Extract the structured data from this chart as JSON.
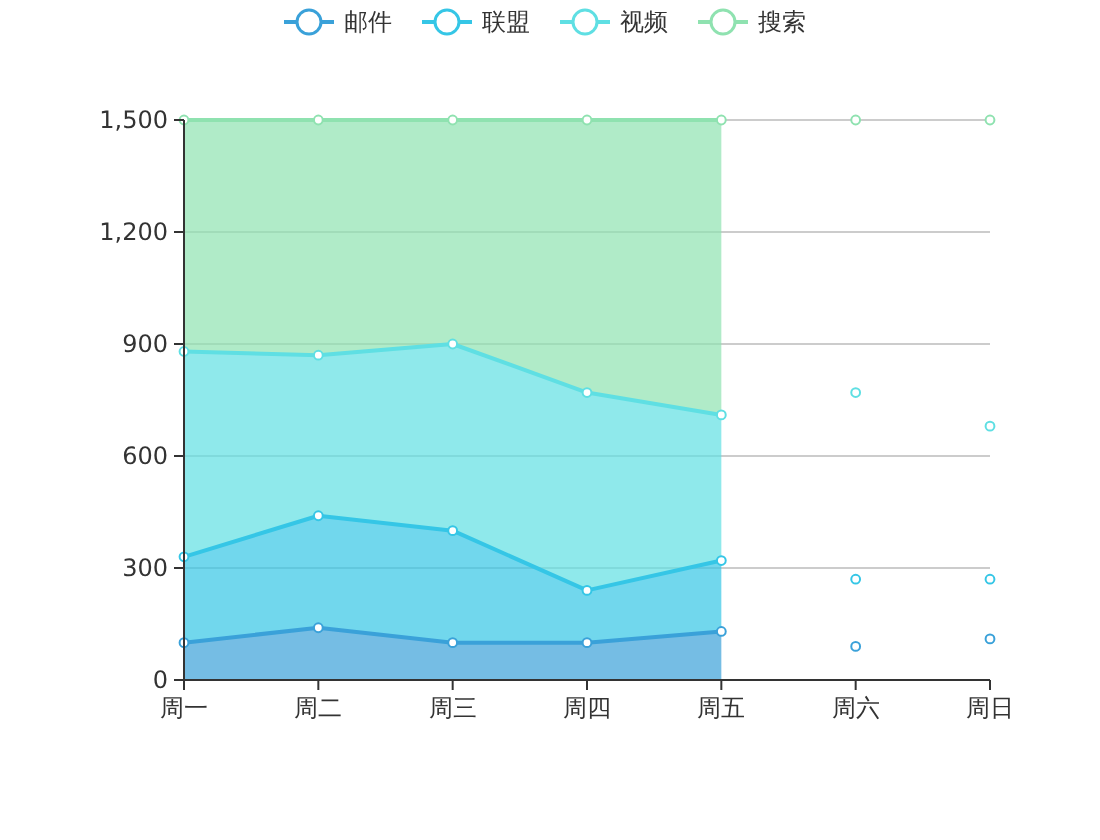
{
  "chart_data": {
    "type": "area",
    "categories": [
      "周一",
      "周二",
      "周三",
      "周四",
      "周五",
      "周六",
      "周日"
    ],
    "stacked": true,
    "ylim": [
      0,
      1500
    ],
    "yticks": [
      0,
      {
        "value": 300,
        "label": "300"
      },
      {
        "value": 600,
        "label": "600"
      },
      {
        "value": 900,
        "label": "900"
      },
      {
        "value": 1200,
        "label": "1,200"
      },
      {
        "value": 1500,
        "label": "1,500"
      }
    ],
    "grid": "y",
    "legend": "top",
    "marker": "circle",
    "series": [
      {
        "name": "邮件",
        "color": "#3aa1d9",
        "values": [
          100,
          140,
          100,
          100,
          130,
          null,
          null
        ]
      },
      {
        "name": "联盟",
        "color": "#35c6e6",
        "values": [
          230,
          300,
          300,
          140,
          190,
          null,
          null
        ]
      },
      {
        "name": "视频",
        "color": "#5fdfe3",
        "values": [
          550,
          430,
          500,
          530,
          390,
          null,
          null
        ]
      },
      {
        "name": "搜索",
        "color": "#8fe2b0",
        "values": [
          620,
          630,
          600,
          730,
          790,
          null,
          null
        ]
      },
      {
        "type": "scatter",
        "color": "#3aa1d9",
        "x": [
          "周六",
          "周日"
        ],
        "values": [
          90,
          110
        ]
      },
      {
        "type": "scatter",
        "color": "#35c6e6",
        "x": [
          "周六",
          "周日"
        ],
        "values": [
          270,
          270
        ]
      },
      {
        "type": "scatter",
        "color": "#5fdfe3",
        "x": [
          "周六",
          "周日"
        ],
        "values": [
          770,
          680
        ]
      },
      {
        "type": "scatter",
        "color": "#8fe2b0",
        "x": [
          "周六",
          "周日"
        ],
        "values": [
          1500,
          1500
        ]
      }
    ]
  }
}
